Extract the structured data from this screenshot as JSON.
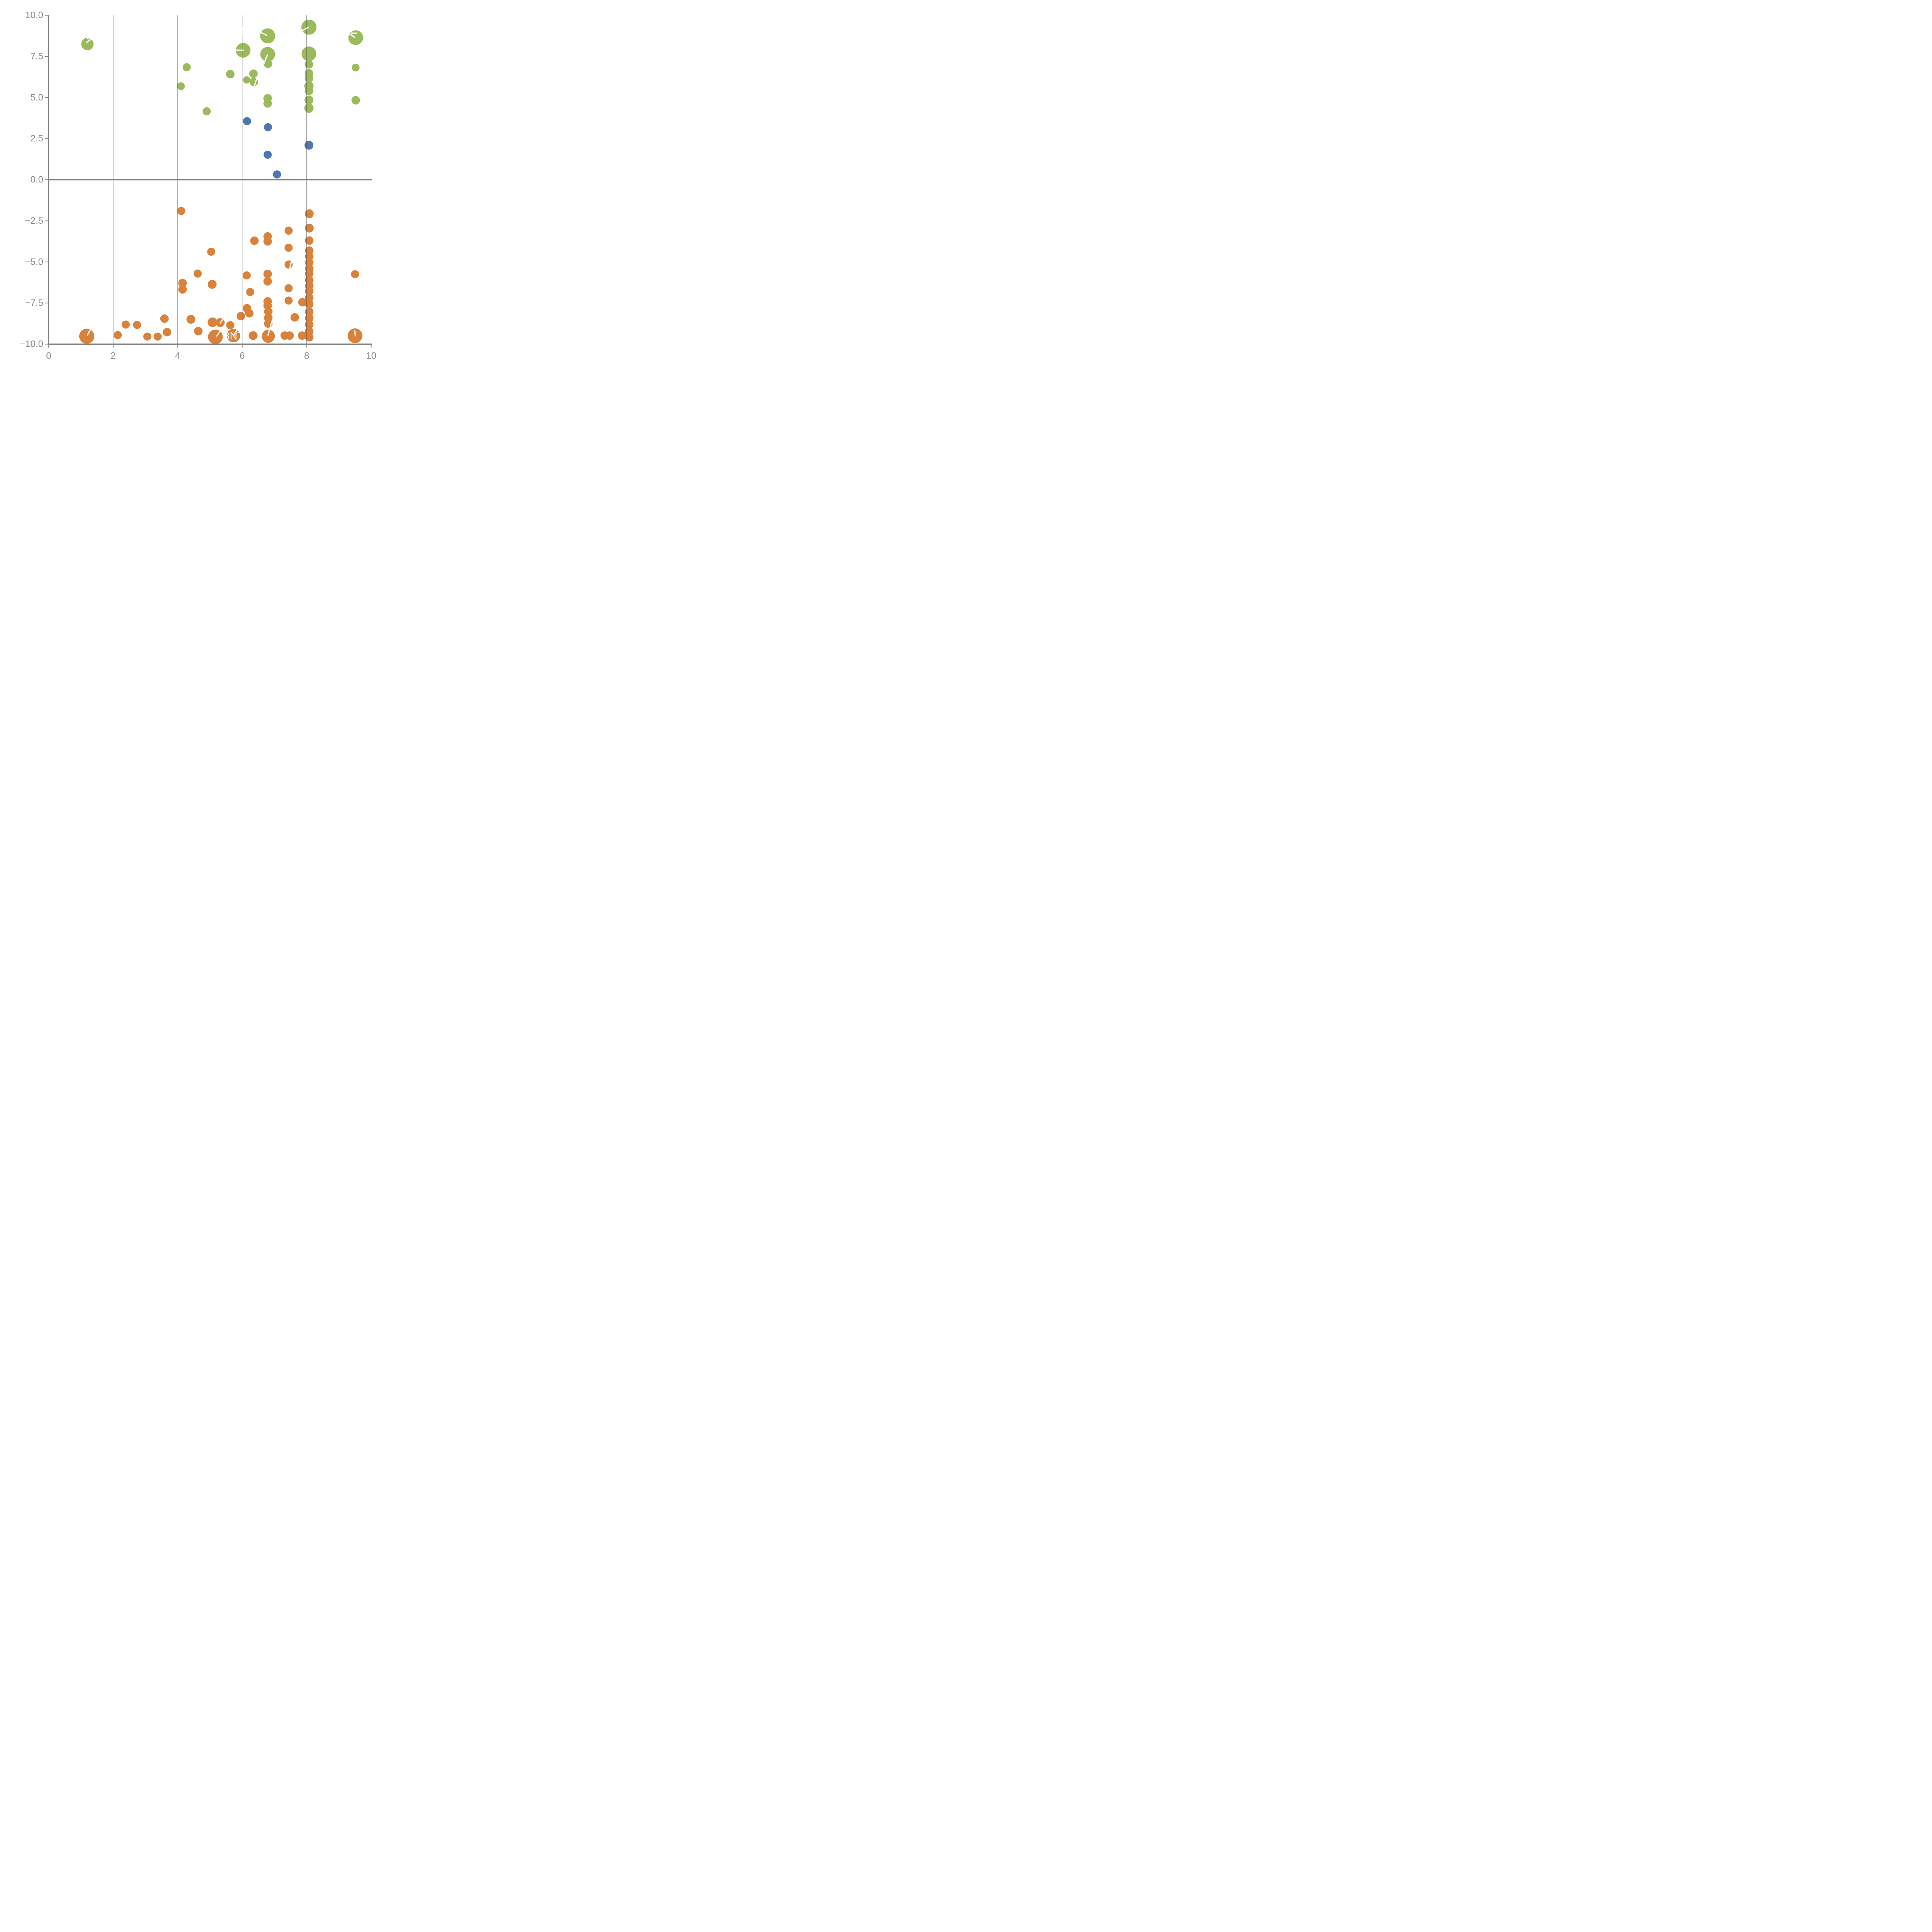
{
  "chart_data": {
    "type": "scatter",
    "title": "",
    "xlabel": "",
    "ylabel": "",
    "xlim": [
      0,
      10
    ],
    "ylim": [
      -10,
      10
    ],
    "grid": "vertical-only",
    "legend": "none",
    "x_ticks": [
      {
        "value": 0,
        "label": "0"
      },
      {
        "value": 2,
        "label": "2"
      },
      {
        "value": 4,
        "label": "4"
      },
      {
        "value": 6,
        "label": "6"
      },
      {
        "value": 8,
        "label": "8"
      },
      {
        "value": 10,
        "label": "10"
      }
    ],
    "y_ticks": [
      {
        "value": 10,
        "label": "10.0"
      },
      {
        "value": 7.5,
        "label": "7.5"
      },
      {
        "value": 5,
        "label": "5.0"
      },
      {
        "value": 2.5,
        "label": "2.5"
      },
      {
        "value": 0,
        "label": "0.0"
      },
      {
        "value": -2.5,
        "label": "−2.5"
      },
      {
        "value": -5,
        "label": "−5.0"
      },
      {
        "value": -7.5,
        "label": "−7.5"
      },
      {
        "value": -10,
        "label": "−10.0"
      }
    ],
    "gridlines_x": [
      2,
      4,
      6,
      8
    ],
    "colors": {
      "green": "#9ABA5B",
      "blue": "#4E77AE",
      "orange": "#D9823B",
      "axis": "#7F7F7F",
      "tick_text": "#8A8A8A",
      "gridline": "#4D4D4D",
      "annotation": "#FFFFFF"
    },
    "series": [
      {
        "name": "green",
        "points": [
          {
            "x": 1.2,
            "y": 8.25,
            "r": 16
          },
          {
            "x": 4.28,
            "y": 6.84,
            "r": 10.5
          },
          {
            "x": 4.1,
            "y": 5.69,
            "r": 10
          },
          {
            "x": 4.9,
            "y": 4.16,
            "r": 10.5
          },
          {
            "x": 5.63,
            "y": 6.42,
            "r": 11
          },
          {
            "x": 6.03,
            "y": 7.87,
            "r": 19
          },
          {
            "x": 6.79,
            "y": 8.75,
            "r": 19.5
          },
          {
            "x": 6.79,
            "y": 7.63,
            "r": 19
          },
          {
            "x": 6.8,
            "y": 7.05,
            "r": 11
          },
          {
            "x": 6.35,
            "y": 6.45,
            "r": 11
          },
          {
            "x": 6.14,
            "y": 6.07,
            "r": 9.5
          },
          {
            "x": 6.36,
            "y": 5.95,
            "r": 11
          },
          {
            "x": 6.79,
            "y": 4.95,
            "r": 11
          },
          {
            "x": 6.79,
            "y": 4.64,
            "r": 11
          },
          {
            "x": 8.07,
            "y": 9.28,
            "r": 19.5
          },
          {
            "x": 8.07,
            "y": 7.66,
            "r": 19
          },
          {
            "x": 8.07,
            "y": 7.02,
            "r": 11
          },
          {
            "x": 8.07,
            "y": 6.47,
            "r": 11
          },
          {
            "x": 8.07,
            "y": 6.17,
            "r": 11
          },
          {
            "x": 8.07,
            "y": 5.7,
            "r": 12
          },
          {
            "x": 8.07,
            "y": 5.4,
            "r": 11
          },
          {
            "x": 8.07,
            "y": 4.85,
            "r": 11.5
          },
          {
            "x": 8.07,
            "y": 4.35,
            "r": 12
          },
          {
            "x": 9.52,
            "y": 8.64,
            "r": 19
          },
          {
            "x": 9.52,
            "y": 6.82,
            "r": 10
          },
          {
            "x": 9.52,
            "y": 4.83,
            "r": 11
          }
        ]
      },
      {
        "name": "blue",
        "points": [
          {
            "x": 6.15,
            "y": 3.56,
            "r": 10.5
          },
          {
            "x": 6.8,
            "y": 3.19,
            "r": 10.5
          },
          {
            "x": 8.07,
            "y": 2.1,
            "r": 11.5
          },
          {
            "x": 6.79,
            "y": 1.52,
            "r": 10.5
          },
          {
            "x": 7.08,
            "y": 0.32,
            "r": 10.5
          }
        ]
      },
      {
        "name": "orange",
        "points": [
          {
            "x": 1.18,
            "y": -9.52,
            "r": 19.5
          },
          {
            "x": 2.14,
            "y": -9.45,
            "r": 10.5
          },
          {
            "x": 2.39,
            "y": -8.81,
            "r": 10.5
          },
          {
            "x": 2.74,
            "y": -8.83,
            "r": 10.5
          },
          {
            "x": 3.06,
            "y": -9.54,
            "r": 10.5
          },
          {
            "x": 3.38,
            "y": -9.54,
            "r": 10.5
          },
          {
            "x": 3.67,
            "y": -9.27,
            "r": 11
          },
          {
            "x": 3.59,
            "y": -8.45,
            "r": 11
          },
          {
            "x": 4.11,
            "y": -1.9,
            "r": 10.5
          },
          {
            "x": 4.15,
            "y": -6.29,
            "r": 11
          },
          {
            "x": 4.15,
            "y": -6.67,
            "r": 11
          },
          {
            "x": 4.41,
            "y": -8.49,
            "r": 11.5
          },
          {
            "x": 4.62,
            "y": -5.71,
            "r": 10.5
          },
          {
            "x": 4.64,
            "y": -9.21,
            "r": 11
          },
          {
            "x": 5.04,
            "y": -4.38,
            "r": 10.5
          },
          {
            "x": 5.07,
            "y": -6.36,
            "r": 11.5
          },
          {
            "x": 5.08,
            "y": -8.67,
            "r": 12.5
          },
          {
            "x": 5.32,
            "y": -8.69,
            "r": 11.5
          },
          {
            "x": 5.17,
            "y": -9.56,
            "r": 19
          },
          {
            "x": 5.63,
            "y": -8.85,
            "r": 10.5
          },
          {
            "x": 5.73,
            "y": -9.48,
            "r": 17.5
          },
          {
            "x": 5.96,
            "y": -8.3,
            "r": 11
          },
          {
            "x": 6.14,
            "y": -5.82,
            "r": 10.5
          },
          {
            "x": 6.15,
            "y": -7.82,
            "r": 11
          },
          {
            "x": 6.22,
            "y": -8.12,
            "r": 11
          },
          {
            "x": 6.25,
            "y": -6.83,
            "r": 10.5
          },
          {
            "x": 6.34,
            "y": -9.48,
            "r": 11.5
          },
          {
            "x": 6.38,
            "y": -3.71,
            "r": 11
          },
          {
            "x": 6.79,
            "y": -3.45,
            "r": 11
          },
          {
            "x": 6.79,
            "y": -3.75,
            "r": 11
          },
          {
            "x": 6.79,
            "y": -5.73,
            "r": 11
          },
          {
            "x": 6.79,
            "y": -6.18,
            "r": 11
          },
          {
            "x": 6.79,
            "y": -7.4,
            "r": 11
          },
          {
            "x": 6.79,
            "y": -7.66,
            "r": 11
          },
          {
            "x": 6.81,
            "y": -8.02,
            "r": 11
          },
          {
            "x": 6.81,
            "y": -8.4,
            "r": 11
          },
          {
            "x": 6.81,
            "y": -8.75,
            "r": 11
          },
          {
            "x": 6.81,
            "y": -9.52,
            "r": 17
          },
          {
            "x": 7.32,
            "y": -9.48,
            "r": 11
          },
          {
            "x": 7.47,
            "y": -9.48,
            "r": 11
          },
          {
            "x": 7.44,
            "y": -3.1,
            "r": 10.5
          },
          {
            "x": 7.44,
            "y": -4.14,
            "r": 10.5
          },
          {
            "x": 7.44,
            "y": -5.16,
            "r": 10.5
          },
          {
            "x": 7.44,
            "y": -6.6,
            "r": 10.5
          },
          {
            "x": 7.44,
            "y": -7.35,
            "r": 10.5
          },
          {
            "x": 7.63,
            "y": -8.37,
            "r": 11
          },
          {
            "x": 7.87,
            "y": -7.45,
            "r": 11
          },
          {
            "x": 7.86,
            "y": -9.48,
            "r": 11
          },
          {
            "x": 8.08,
            "y": -2.07,
            "r": 11.5
          },
          {
            "x": 8.08,
            "y": -2.94,
            "r": 11.5
          },
          {
            "x": 8.08,
            "y": -3.7,
            "r": 11
          },
          {
            "x": 8.08,
            "y": -4.31,
            "r": 11
          },
          {
            "x": 8.08,
            "y": -4.67,
            "r": 11
          },
          {
            "x": 8.08,
            "y": -5.04,
            "r": 11
          },
          {
            "x": 8.08,
            "y": -5.41,
            "r": 11
          },
          {
            "x": 8.08,
            "y": -5.71,
            "r": 11
          },
          {
            "x": 8.08,
            "y": -6.11,
            "r": 11
          },
          {
            "x": 8.08,
            "y": -6.46,
            "r": 11
          },
          {
            "x": 8.08,
            "y": -6.78,
            "r": 11
          },
          {
            "x": 8.08,
            "y": -7.18,
            "r": 11
          },
          {
            "x": 8.08,
            "y": -7.56,
            "r": 11
          },
          {
            "x": 8.08,
            "y": -8.04,
            "r": 11
          },
          {
            "x": 8.08,
            "y": -8.42,
            "r": 11
          },
          {
            "x": 8.08,
            "y": -8.81,
            "r": 11
          },
          {
            "x": 8.08,
            "y": -9.23,
            "r": 11
          },
          {
            "x": 8.08,
            "y": -9.58,
            "r": 11
          },
          {
            "x": 9.5,
            "y": -5.75,
            "r": 10.5
          },
          {
            "x": 9.5,
            "y": -9.49,
            "r": 19
          }
        ]
      }
    ],
    "annotations": {
      "visible_text": [
        {
          "id": "bnt-label",
          "label": "BNT",
          "x": 5.4,
          "y": -9.5,
          "font_px": 27
        }
      ],
      "leader_lines": [
        {
          "x1": 1.18,
          "y1": 8.35,
          "x2": 1.31,
          "y2": 8.54
        },
        {
          "x1": 5.8,
          "y1": 7.88,
          "x2": 6.03,
          "y2": 7.87
        },
        {
          "x1": 6.59,
          "y1": 8.95,
          "x2": 6.76,
          "y2": 8.78
        },
        {
          "x1": 6.78,
          "y1": 7.58,
          "x2": 6.67,
          "y2": 7.05
        },
        {
          "x1": 7.88,
          "y1": 9.09,
          "x2": 8.05,
          "y2": 9.27
        },
        {
          "x1": 9.33,
          "y1": 8.86,
          "x2": 9.49,
          "y2": 8.66
        },
        {
          "x1": 6.47,
          "y1": 6.26,
          "x2": 6.38,
          "y2": 5.71
        },
        {
          "x1": 1.29,
          "y1": -9.12,
          "x2": 1.2,
          "y2": -9.46
        },
        {
          "x1": 5.38,
          "y1": -9.04,
          "x2": 5.21,
          "y2": -9.5
        },
        {
          "x1": 5.41,
          "y1": -8.46,
          "x2": 5.32,
          "y2": -8.72
        },
        {
          "x1": 5.85,
          "y1": -9.12,
          "x2": 5.74,
          "y2": -9.46
        },
        {
          "x1": 6.92,
          "y1": -8.63,
          "x2": 6.8,
          "y2": -9.45
        },
        {
          "x1": 7.52,
          "y1": -5.01,
          "x2": 7.48,
          "y2": -5.38
        },
        {
          "x1": 9.49,
          "y1": -9.2,
          "x2": 9.51,
          "y2": -9.49
        }
      ],
      "white_fragments": [
        {
          "x": 5.85,
          "y": 9.3,
          "w": 0.4,
          "h": 0.23
        },
        {
          "x": 5.95,
          "y": 8.95,
          "w": 0.2,
          "h": 0.15
        },
        {
          "x": 1.19,
          "y": 8.7,
          "w": 0.07,
          "h": 0.15
        },
        {
          "x": 9.37,
          "y": 8.95,
          "w": 0.2,
          "h": 0.07
        }
      ]
    }
  }
}
